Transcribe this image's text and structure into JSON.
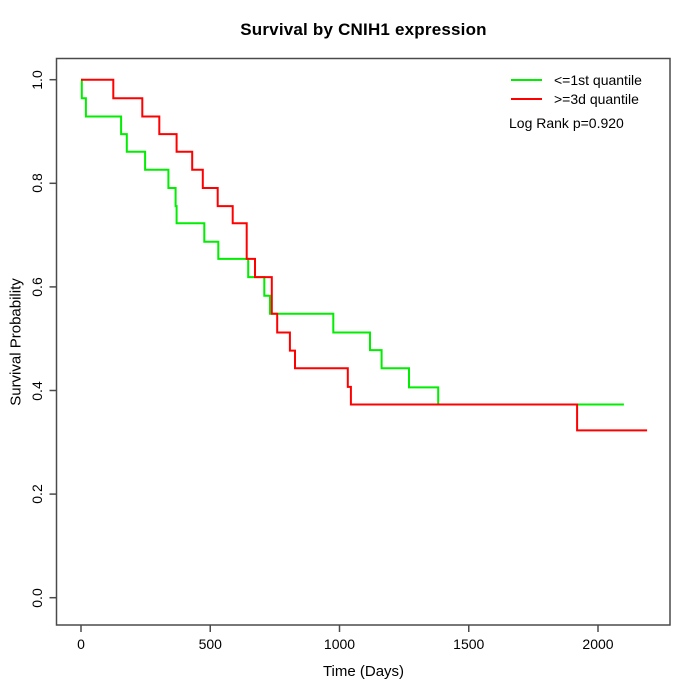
{
  "title": "Survival by CNIH1 expression",
  "axes": {
    "x_label": "Time (Days)",
    "y_label": "Survival Probability",
    "x_tick_labels": [
      "0",
      "500",
      "1000",
      "1500",
      "2000"
    ],
    "y_tick_labels": [
      "0.0",
      "0.2",
      "0.4",
      "0.6",
      "0.8",
      "1.0"
    ]
  },
  "legend": {
    "entries": [
      {
        "label": "<=1st quantile",
        "color": "#00ee00"
      },
      {
        "label": ">=3d quantile",
        "color": "#ff0000"
      }
    ],
    "note": "Log Rank p=0.920"
  },
  "chart_data": {
    "type": "line",
    "subtype": "kaplan-meier-step-curves",
    "title": "Survival by CNIH1 expression",
    "xlabel": "Time (Days)",
    "ylabel": "Survival Probability",
    "xlim": [
      -95,
      2280
    ],
    "ylim": [
      -0.04,
      1.04
    ],
    "x_ticks": [
      0,
      500,
      1000,
      1500,
      2000
    ],
    "y_ticks": [
      0.0,
      0.2,
      0.4,
      0.6,
      0.8,
      1.0
    ],
    "grid": false,
    "legend_position": "topright",
    "annotation": "Log Rank p=0.920",
    "axis_color": "#4a4a4a",
    "series": [
      {
        "name": "<=1st quantile",
        "color": "#00ee00",
        "points": [
          [
            0,
            1.0
          ],
          [
            3,
            0.964
          ],
          [
            19,
            0.929
          ],
          [
            155,
            0.895
          ],
          [
            177,
            0.861
          ],
          [
            248,
            0.826
          ],
          [
            338,
            0.791
          ],
          [
            366,
            0.756
          ],
          [
            370,
            0.723
          ],
          [
            477,
            0.687
          ],
          [
            531,
            0.654
          ],
          [
            647,
            0.619
          ],
          [
            709,
            0.583
          ],
          [
            731,
            0.548
          ],
          [
            976,
            0.512
          ],
          [
            1118,
            0.478
          ],
          [
            1163,
            0.443
          ],
          [
            1269,
            0.406
          ],
          [
            1382,
            0.373
          ],
          [
            2100,
            0.373
          ]
        ]
      },
      {
        "name": ">=3d quantile",
        "color": "#ff0000",
        "points": [
          [
            0,
            1.0
          ],
          [
            125,
            0.964
          ],
          [
            237,
            0.929
          ],
          [
            303,
            0.895
          ],
          [
            370,
            0.861
          ],
          [
            430,
            0.826
          ],
          [
            471,
            0.791
          ],
          [
            529,
            0.756
          ],
          [
            587,
            0.723
          ],
          [
            641,
            0.654
          ],
          [
            673,
            0.619
          ],
          [
            738,
            0.548
          ],
          [
            759,
            0.512
          ],
          [
            808,
            0.477
          ],
          [
            828,
            0.443
          ],
          [
            1032,
            0.407
          ],
          [
            1044,
            0.373
          ],
          [
            1919,
            0.323
          ],
          [
            2190,
            0.323
          ]
        ]
      }
    ]
  }
}
